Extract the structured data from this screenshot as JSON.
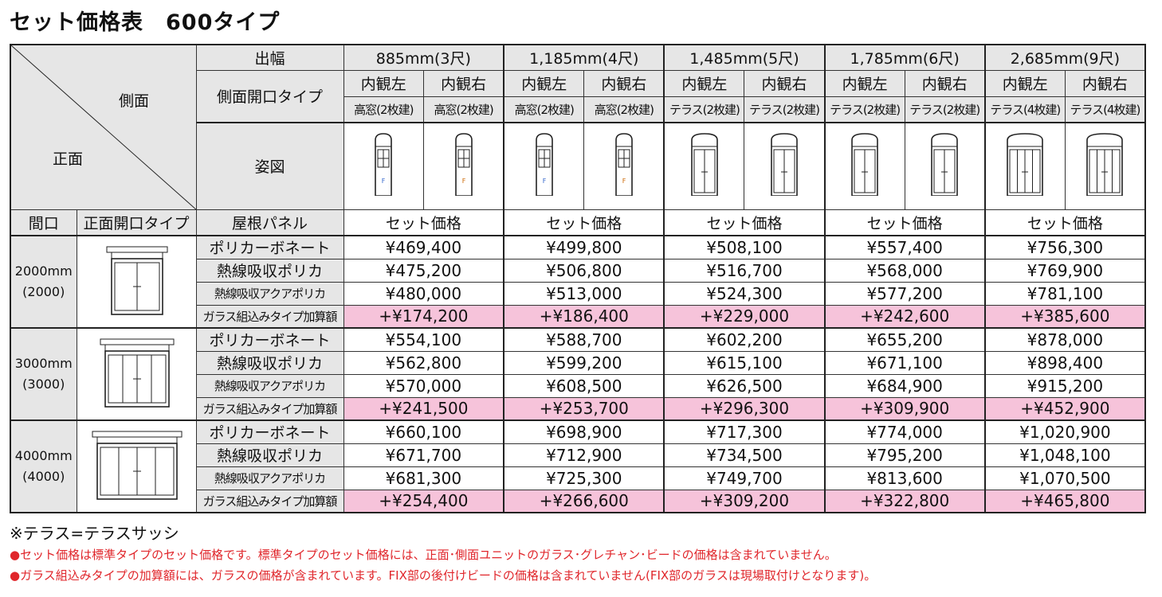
{
  "title": "セット価格表　600タイプ",
  "header": {
    "side": "側面",
    "front": "正面",
    "width_label": "出幅",
    "side_type_label": "側面開口タイプ",
    "figure_label": "姿図",
    "frontage_label": "間口",
    "front_type_label": "正面開口タイプ",
    "roof_label": "屋根パネル",
    "set_price_label": "セット価格"
  },
  "columns": [
    {
      "width": "885mm(3尺)",
      "left": "内観左",
      "right": "内観右",
      "type_left": "高窓(2枚建)",
      "type_right": "高窓(2枚建)",
      "icon": "high-window-icon"
    },
    {
      "width": "1,185mm(4尺)",
      "left": "内観左",
      "right": "内観右",
      "type_left": "高窓(2枚建)",
      "type_right": "高窓(2枚建)",
      "icon": "high-window-icon"
    },
    {
      "width": "1,485mm(5尺)",
      "left": "内観左",
      "right": "内観右",
      "type_left": "テラス(2枚建)",
      "type_right": "テラス(2枚建)",
      "icon": "terrace-2-icon"
    },
    {
      "width": "1,785mm(6尺)",
      "left": "内観左",
      "right": "内観右",
      "type_left": "テラス(2枚建)",
      "type_right": "テラス(2枚建)",
      "icon": "terrace-2-icon"
    },
    {
      "width": "2,685mm(9尺)",
      "left": "内観左",
      "right": "内観右",
      "type_left": "テラス(4枚建)",
      "type_right": "テラス(4枚建)",
      "icon": "terrace-4-icon"
    }
  ],
  "groups": [
    {
      "frontage": "2000mm",
      "sub": "(2000)",
      "rows": [
        {
          "name": "ポリカーボネート",
          "prices": [
            "¥469,400",
            "¥499,800",
            "¥508,100",
            "¥557,400",
            "¥756,300"
          ]
        },
        {
          "name": "熱線吸収ポリカ",
          "prices": [
            "¥475,200",
            "¥506,800",
            "¥516,700",
            "¥568,000",
            "¥769,900"
          ]
        },
        {
          "name": "熱線吸収アクアポリカ",
          "prices": [
            "¥480,000",
            "¥513,000",
            "¥524,300",
            "¥577,200",
            "¥781,100"
          ]
        },
        {
          "name": "ガラス組込みタイプ加算額",
          "prices": [
            "+¥174,200",
            "+¥186,400",
            "+¥229,000",
            "+¥242,600",
            "+¥385,600"
          ],
          "highlight": true
        }
      ]
    },
    {
      "frontage": "3000mm",
      "sub": "(3000)",
      "rows": [
        {
          "name": "ポリカーボネート",
          "prices": [
            "¥554,100",
            "¥588,700",
            "¥602,200",
            "¥655,200",
            "¥878,000"
          ]
        },
        {
          "name": "熱線吸収ポリカ",
          "prices": [
            "¥562,800",
            "¥599,200",
            "¥615,100",
            "¥671,100",
            "¥898,400"
          ]
        },
        {
          "name": "熱線吸収アクアポリカ",
          "prices": [
            "¥570,000",
            "¥608,500",
            "¥626,500",
            "¥684,900",
            "¥915,200"
          ]
        },
        {
          "name": "ガラス組込みタイプ加算額",
          "prices": [
            "+¥241,500",
            "+¥253,700",
            "+¥296,300",
            "+¥309,900",
            "+¥452,900"
          ],
          "highlight": true
        }
      ]
    },
    {
      "frontage": "4000mm",
      "sub": "(4000)",
      "rows": [
        {
          "name": "ポリカーボネート",
          "prices": [
            "¥660,100",
            "¥698,900",
            "¥717,300",
            "¥774,000",
            "¥1,020,900"
          ]
        },
        {
          "name": "熱線吸収ポリカ",
          "prices": [
            "¥671,700",
            "¥712,900",
            "¥734,500",
            "¥795,200",
            "¥1,048,100"
          ]
        },
        {
          "name": "熱線吸収アクアポリカ",
          "prices": [
            "¥681,300",
            "¥725,300",
            "¥749,700",
            "¥813,600",
            "¥1,070,500"
          ]
        },
        {
          "name": "ガラス組込みタイプ加算額",
          "prices": [
            "+¥254,400",
            "+¥266,600",
            "+¥309,200",
            "+¥322,800",
            "+¥465,800"
          ],
          "highlight": true
        }
      ]
    }
  ],
  "notes": [
    "※テラス=テラスサッシ",
    "●セット価格は標準タイプのセット価格です。標準タイプのセット価格には、正面･側面ユニットのガラス･グレチャン･ビードの価格は含まれていません。",
    "●ガラス組込みタイプの加算額には、ガラスの価格が含まれています。FIX部の後付けビードの価格は含まれていません(FIX部のガラスは現場取付けとなります)。"
  ],
  "colors": {
    "header_bg": "#e6e6e6",
    "highlight_bg": "#f6c3da",
    "note_red": "#e0262b"
  }
}
